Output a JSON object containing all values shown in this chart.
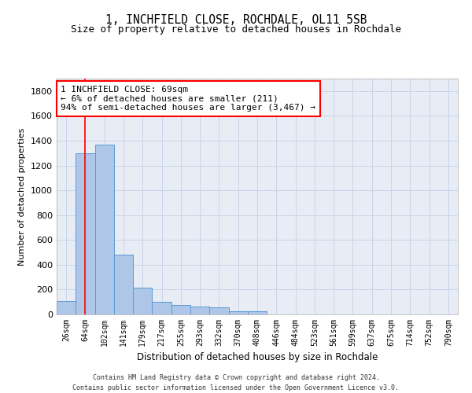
{
  "title1": "1, INCHFIELD CLOSE, ROCHDALE, OL11 5SB",
  "title2": "Size of property relative to detached houses in Rochdale",
  "xlabel": "Distribution of detached houses by size in Rochdale",
  "ylabel": "Number of detached properties",
  "categories": [
    "26sqm",
    "64sqm",
    "102sqm",
    "141sqm",
    "179sqm",
    "217sqm",
    "255sqm",
    "293sqm",
    "332sqm",
    "370sqm",
    "408sqm",
    "446sqm",
    "484sqm",
    "523sqm",
    "561sqm",
    "599sqm",
    "637sqm",
    "675sqm",
    "714sqm",
    "752sqm",
    "790sqm"
  ],
  "values": [
    110,
    1300,
    1370,
    480,
    215,
    100,
    75,
    65,
    55,
    25,
    25,
    0,
    0,
    0,
    0,
    0,
    0,
    0,
    0,
    0,
    0
  ],
  "bar_color": "#aec6e8",
  "bar_edge_color": "#5b9bd5",
  "grid_color": "#c8d4e8",
  "background_color": "#e8edf5",
  "annotation_text": "1 INCHFIELD CLOSE: 69sqm\n← 6% of detached houses are smaller (211)\n94% of semi-detached houses are larger (3,467) →",
  "vline_x": 1,
  "ylim": [
    0,
    1900
  ],
  "yticks": [
    0,
    200,
    400,
    600,
    800,
    1000,
    1200,
    1400,
    1600,
    1800
  ],
  "footer1": "Contains HM Land Registry data © Crown copyright and database right 2024.",
  "footer2": "Contains public sector information licensed under the Open Government Licence v3.0."
}
